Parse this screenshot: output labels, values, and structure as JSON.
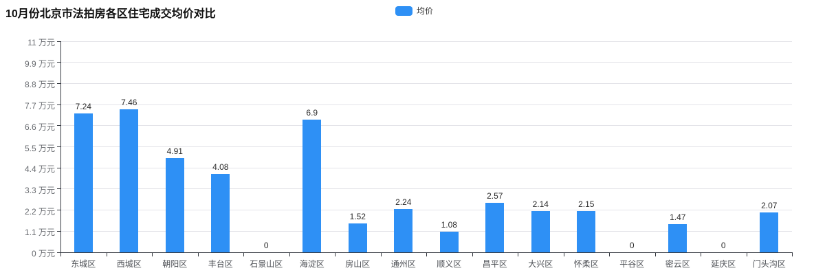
{
  "title": "10月份北京市法拍房各区住宅成交均价对比",
  "legend": {
    "label": "均价"
  },
  "colors": {
    "bar": "#2e90f5",
    "grid": "#e3e3e8",
    "axis": "#33373e"
  },
  "chart_data": {
    "type": "bar",
    "title": "10月份北京市法拍房各区住宅成交均价对比",
    "categories": [
      "东城区",
      "西城区",
      "朝阳区",
      "丰台区",
      "石景山区",
      "海淀区",
      "房山区",
      "通州区",
      "顺义区",
      "昌平区",
      "大兴区",
      "怀柔区",
      "平谷区",
      "密云区",
      "延庆区",
      "门头沟区"
    ],
    "series": [
      {
        "name": "均价",
        "values": [
          7.24,
          7.46,
          4.91,
          4.08,
          0,
          6.9,
          1.52,
          2.24,
          1.08,
          2.57,
          2.14,
          2.15,
          0,
          1.47,
          0,
          2.07
        ]
      }
    ],
    "xlabel": "",
    "ylabel": "万元",
    "ylim": [
      0,
      11
    ],
    "ytick_labels": [
      "0 万元",
      "1.1 万元",
      "2.2 万元",
      "3.3 万元",
      "4.4 万元",
      "5.5 万元",
      "6.6 万元",
      "7.7 万元",
      "8.8 万元",
      "9.9 万元",
      "11 万元"
    ],
    "grid": true,
    "legend_position": "top-center",
    "data_labels": true
  }
}
